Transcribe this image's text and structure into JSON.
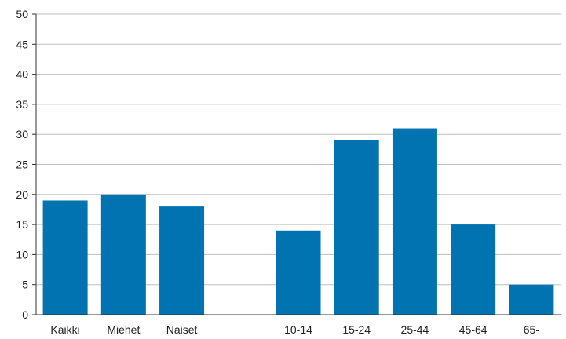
{
  "chart_data": {
    "type": "bar",
    "categories": [
      "Kaikki",
      "Miehet",
      "Naiset",
      "",
      "10-14",
      "15-24",
      "25-44",
      "45-64",
      "65-"
    ],
    "values": [
      19,
      20,
      18,
      null,
      14,
      29,
      31,
      15,
      5
    ],
    "ylim": [
      0,
      50
    ],
    "yticks": [
      "0",
      "5",
      "10",
      "15",
      "20",
      "25",
      "30",
      "35",
      "40",
      "45",
      "50"
    ],
    "grid": true,
    "bar_color": "#0073b0",
    "grid_color": "#bfbfbf",
    "axis_color": "#333333"
  }
}
